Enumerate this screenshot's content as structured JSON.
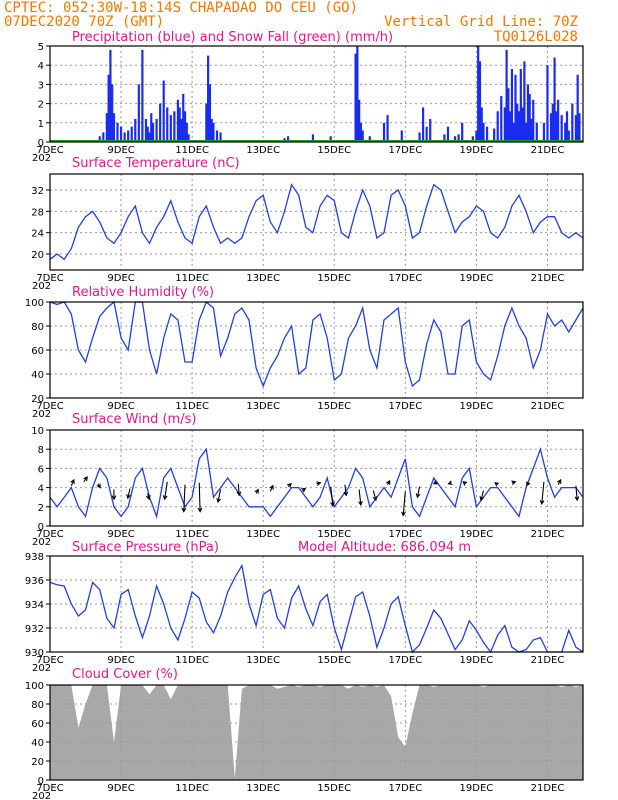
{
  "header": {
    "line1": "CPTEC:   052:30W-18:14S  CHAPADAO DO CEU (GO)",
    "line2_left": "07DEC2020 70Z (GMT)",
    "line2_right": "Vertical Grid Line: 70Z",
    "line3_right": "TQ0126L028"
  },
  "colors": {
    "header": "#f07800",
    "title": "#e0188c",
    "precip": "#1a2cf0",
    "snow": "#1aa020",
    "line": "#2240e0",
    "arrows": "#000000",
    "cloud": "#a8a8a8"
  },
  "x_axis": {
    "ticks": [
      "7DEC",
      "9DEC",
      "11DEC",
      "13DEC",
      "15DEC",
      "17DEC",
      "19DEC",
      "21DEC"
    ],
    "partial_label": "202"
  },
  "chart_data": [
    {
      "id": "precip",
      "type": "bar",
      "title": "Precipitation (blue) and Snow Fall (green) (mm/h)",
      "ylim": [
        0,
        5
      ],
      "yticks": [
        0,
        1,
        2,
        3,
        4,
        5
      ],
      "xlim": [
        7,
        22
      ],
      "series": [
        {
          "name": "Precipitation",
          "x": [
            8.4,
            8.5,
            8.6,
            8.65,
            8.7,
            8.75,
            8.8,
            8.9,
            9.0,
            9.1,
            9.2,
            9.3,
            9.4,
            9.5,
            9.6,
            9.7,
            9.75,
            9.8,
            9.85,
            9.9,
            10.0,
            10.1,
            10.2,
            10.3,
            10.4,
            10.5,
            10.6,
            10.65,
            10.7,
            10.75,
            10.8,
            10.85,
            10.9,
            11.4,
            11.45,
            11.5,
            11.55,
            11.6,
            11.7,
            11.8,
            13.6,
            13.7,
            14.4,
            14.9,
            15.6,
            15.65,
            15.7,
            15.75,
            15.8,
            16.0,
            16.4,
            16.5,
            16.9,
            17.4,
            17.5,
            17.6,
            17.7,
            18.1,
            18.2,
            18.4,
            18.5,
            18.6,
            18.9,
            19.0,
            19.05,
            19.1,
            19.15,
            19.2,
            19.3,
            19.5,
            19.6,
            19.7,
            19.8,
            19.85,
            19.9,
            19.95,
            20.0,
            20.05,
            20.1,
            20.15,
            20.2,
            20.25,
            20.3,
            20.35,
            20.4,
            20.45,
            20.5,
            20.55,
            20.6,
            20.7,
            20.9,
            21.0,
            21.1,
            21.15,
            21.2,
            21.25,
            21.3,
            21.4,
            21.5,
            21.55,
            21.6,
            21.7,
            21.8,
            21.85,
            21.9
          ],
          "values": [
            0.3,
            0.5,
            1.5,
            3.5,
            4.8,
            3.0,
            1.5,
            1.0,
            0.8,
            0.5,
            0.6,
            0.8,
            1.2,
            3.0,
            4.8,
            1.2,
            0.8,
            0.5,
            1.5,
            1.0,
            1.2,
            2.0,
            3.2,
            1.8,
            1.4,
            1.6,
            2.2,
            1.8,
            1.2,
            2.5,
            1.6,
            1.0,
            0.4,
            2.0,
            4.5,
            3.0,
            1.2,
            1.0,
            0.6,
            0.5,
            0.2,
            0.3,
            0.4,
            0.3,
            4.6,
            5.0,
            2.2,
            1.0,
            0.6,
            0.3,
            1.0,
            1.4,
            0.6,
            0.5,
            1.8,
            0.8,
            1.2,
            0.4,
            0.8,
            0.3,
            0.4,
            1.0,
            0.3,
            0.6,
            5.0,
            4.2,
            1.8,
            1.0,
            0.8,
            0.7,
            1.6,
            2.4,
            1.8,
            4.8,
            2.8,
            1.6,
            3.8,
            1.0,
            3.5,
            2.0,
            1.6,
            3.8,
            1.8,
            4.2,
            1.0,
            3.0,
            2.5,
            1.2,
            2.2,
            1.0,
            1.0,
            4.0,
            1.5,
            2.0,
            4.4,
            1.6,
            2.2,
            1.4,
            1.0,
            1.6,
            0.6,
            2.0,
            1.4,
            3.5,
            1.5
          ]
        },
        {
          "name": "Snow Fall",
          "x": [
            7.0,
            22.0
          ],
          "values": [
            0,
            0
          ]
        }
      ]
    },
    {
      "id": "temp",
      "type": "line",
      "title": "Surface Temperature (nC)",
      "ylim": [
        17,
        35
      ],
      "yticks": [
        20,
        24,
        28,
        32
      ],
      "xlim": [
        7,
        22
      ],
      "x": [
        7.0,
        7.2,
        7.4,
        7.6,
        7.8,
        8.0,
        8.2,
        8.4,
        8.6,
        8.8,
        9.0,
        9.2,
        9.4,
        9.6,
        9.8,
        10.0,
        10.2,
        10.4,
        10.6,
        10.8,
        11.0,
        11.2,
        11.4,
        11.6,
        11.8,
        12.0,
        12.2,
        12.4,
        12.6,
        12.8,
        13.0,
        13.2,
        13.4,
        13.6,
        13.8,
        14.0,
        14.2,
        14.4,
        14.6,
        14.8,
        15.0,
        15.2,
        15.4,
        15.6,
        15.8,
        16.0,
        16.2,
        16.4,
        16.6,
        16.8,
        17.0,
        17.2,
        17.4,
        17.6,
        17.8,
        18.0,
        18.2,
        18.4,
        18.6,
        18.8,
        19.0,
        19.2,
        19.4,
        19.6,
        19.8,
        20.0,
        20.2,
        20.4,
        20.6,
        20.8,
        21.0,
        21.2,
        21.4,
        21.6,
        21.8,
        22.0
      ],
      "values": [
        19,
        20,
        19,
        21,
        25,
        27,
        28,
        26,
        23,
        22,
        24,
        27,
        29,
        24,
        22,
        25,
        27,
        30,
        26,
        23,
        22,
        27,
        29,
        25,
        22,
        23,
        22,
        23,
        27,
        30,
        31,
        26,
        24,
        28,
        33,
        31,
        25,
        24,
        29,
        31,
        30,
        24,
        23,
        28,
        32,
        29,
        23,
        24,
        31,
        32,
        29,
        23,
        24,
        29,
        33,
        32,
        28,
        24,
        26,
        27,
        29,
        28,
        24,
        23,
        25,
        29,
        31,
        28,
        24,
        26,
        27,
        27,
        24,
        23,
        24,
        23
      ]
    },
    {
      "id": "rh",
      "type": "line",
      "title": "Relative Humidity (%)",
      "ylim": [
        20,
        100
      ],
      "yticks": [
        20,
        40,
        60,
        80,
        100
      ],
      "xlim": [
        7,
        22
      ],
      "x": [
        7.0,
        7.2,
        7.4,
        7.6,
        7.8,
        8.0,
        8.2,
        8.4,
        8.6,
        8.8,
        9.0,
        9.2,
        9.4,
        9.6,
        9.8,
        10.0,
        10.2,
        10.4,
        10.6,
        10.8,
        11.0,
        11.2,
        11.4,
        11.6,
        11.8,
        12.0,
        12.2,
        12.4,
        12.6,
        12.8,
        13.0,
        13.2,
        13.4,
        13.6,
        13.8,
        14.0,
        14.2,
        14.4,
        14.6,
        14.8,
        15.0,
        15.2,
        15.4,
        15.6,
        15.8,
        16.0,
        16.2,
        16.4,
        16.6,
        16.8,
        17.0,
        17.2,
        17.4,
        17.6,
        17.8,
        18.0,
        18.2,
        18.4,
        18.6,
        18.8,
        19.0,
        19.2,
        19.4,
        19.6,
        19.8,
        20.0,
        20.2,
        20.4,
        20.6,
        20.8,
        21.0,
        21.2,
        21.4,
        21.6,
        21.8,
        22.0
      ],
      "values": [
        100,
        98,
        100,
        90,
        60,
        50,
        70,
        88,
        95,
        100,
        70,
        60,
        100,
        100,
        60,
        40,
        70,
        90,
        85,
        50,
        50,
        85,
        100,
        95,
        55,
        70,
        90,
        95,
        85,
        45,
        30,
        45,
        55,
        70,
        80,
        40,
        45,
        85,
        90,
        70,
        35,
        40,
        70,
        80,
        95,
        60,
        45,
        85,
        90,
        95,
        50,
        30,
        35,
        65,
        85,
        75,
        40,
        40,
        80,
        85,
        50,
        40,
        35,
        55,
        80,
        95,
        80,
        70,
        45,
        60,
        90,
        80,
        85,
        75,
        85,
        95
      ]
    },
    {
      "id": "wind",
      "type": "line",
      "title": "Surface Wind (m/s)",
      "ylim": [
        0,
        10
      ],
      "yticks": [
        0,
        2,
        4,
        6,
        8,
        10
      ],
      "xlim": [
        7,
        22
      ],
      "x": [
        7.0,
        7.2,
        7.4,
        7.6,
        7.8,
        8.0,
        8.2,
        8.4,
        8.6,
        8.8,
        9.0,
        9.2,
        9.4,
        9.6,
        9.8,
        10.0,
        10.2,
        10.4,
        10.6,
        10.8,
        11.0,
        11.2,
        11.4,
        11.6,
        11.8,
        12.0,
        12.2,
        12.4,
        12.6,
        12.8,
        13.0,
        13.2,
        13.4,
        13.6,
        13.8,
        14.0,
        14.2,
        14.4,
        14.6,
        14.8,
        15.0,
        15.2,
        15.4,
        15.6,
        15.8,
        16.0,
        16.2,
        16.4,
        16.6,
        16.8,
        17.0,
        17.2,
        17.4,
        17.6,
        17.8,
        18.0,
        18.2,
        18.4,
        18.6,
        18.8,
        19.0,
        19.2,
        19.4,
        19.6,
        19.8,
        20.0,
        20.2,
        20.4,
        20.6,
        20.8,
        21.0,
        21.2,
        21.4,
        21.6,
        21.8,
        22.0
      ],
      "values": [
        3,
        2,
        3,
        4,
        2,
        1,
        4,
        6,
        5,
        2,
        1,
        2,
        5,
        6,
        3,
        1,
        5,
        6,
        4,
        2,
        3,
        7,
        8,
        3,
        4,
        5,
        4,
        3,
        2,
        2,
        2,
        1,
        2,
        3,
        4,
        4,
        3,
        2,
        3,
        5,
        2,
        3,
        4,
        6,
        5,
        2,
        3,
        4,
        3,
        5,
        7,
        2,
        1,
        3,
        5,
        4,
        3,
        2,
        5,
        6,
        2,
        3,
        4,
        4,
        3,
        2,
        1,
        4,
        6,
        8,
        5,
        3,
        4,
        4,
        4,
        3
      ],
      "arrows": {
        "x": [
          7.6,
          7.95,
          8.35,
          8.8,
          9.25,
          9.75,
          10.3,
          10.8,
          11.2,
          11.8,
          12.3,
          12.8,
          13.2,
          13.7,
          14.1,
          14.5,
          14.9,
          15.3,
          15.7,
          16.1,
          16.5,
          17.0,
          17.4,
          17.8,
          18.3,
          18.7,
          19.2,
          19.6,
          20.0,
          20.4,
          20.9,
          21.3,
          21.8
        ],
        "y": [
          4.2,
          4.6,
          4.4,
          3.8,
          3.9,
          3.4,
          4.6,
          4.3,
          4.5,
          3.8,
          4.4,
          3.4,
          3.6,
          4.1,
          3.7,
          4.4,
          4.1,
          4.3,
          3.8,
          3.7,
          4.3,
          3.6,
          4.1,
          4.6,
          4.5,
          4.4,
          3.7,
          4.3,
          4.5,
          4.4,
          4.6,
          4.3,
          4.2
        ],
        "u": [
          0.6,
          0.8,
          0.5,
          0,
          -0.5,
          0.3,
          -0.6,
          -0.3,
          0.2,
          -0.6,
          0.2,
          0.5,
          0.6,
          0.7,
          0.7,
          0.9,
          0.5,
          0.3,
          0.4,
          0.6,
          0.5,
          -0.5,
          -0.5,
          0.8,
          -0.7,
          -0.6,
          -0.6,
          -0.6,
          0.8,
          0.8,
          -0.5,
          0.6,
          0.3
        ],
        "v": [
          0.6,
          0.5,
          -0.4,
          -1.0,
          -1.0,
          -0.6,
          -1.8,
          -2.8,
          -3.0,
          -1.3,
          -1.2,
          0.4,
          0.6,
          0.3,
          0.2,
          0.1,
          -2.0,
          -1.1,
          -1.6,
          -1.0,
          0.4,
          -2.5,
          -1.1,
          -0.2,
          -0.1,
          0.2,
          -1.0,
          0.2,
          0.1,
          0,
          -2.3,
          0.5,
          -1.5
        ]
      }
    },
    {
      "id": "pressure",
      "type": "line",
      "title": "Surface Pressure (hPa)",
      "annotation": "Model Altitude: 686.094 m",
      "ylim": [
        930,
        938
      ],
      "yticks": [
        930,
        932,
        934,
        936,
        938
      ],
      "xlim": [
        7,
        22
      ],
      "x": [
        7.0,
        7.2,
        7.4,
        7.6,
        7.8,
        8.0,
        8.2,
        8.4,
        8.6,
        8.8,
        9.0,
        9.2,
        9.4,
        9.6,
        9.8,
        10.0,
        10.2,
        10.4,
        10.6,
        10.8,
        11.0,
        11.2,
        11.4,
        11.6,
        11.8,
        12.0,
        12.2,
        12.4,
        12.6,
        12.8,
        13.0,
        13.2,
        13.4,
        13.6,
        13.8,
        14.0,
        14.2,
        14.4,
        14.6,
        14.8,
        15.0,
        15.2,
        15.4,
        15.6,
        15.8,
        16.0,
        16.2,
        16.4,
        16.6,
        16.8,
        17.0,
        17.2,
        17.4,
        17.6,
        17.8,
        18.0,
        18.2,
        18.4,
        18.6,
        18.8,
        19.0,
        19.2,
        19.4,
        19.6,
        19.8,
        20.0,
        20.2,
        20.4,
        20.6,
        20.8,
        21.0,
        21.2,
        21.4,
        21.6,
        21.8,
        22.0
      ],
      "values": [
        935.8,
        935.6,
        935.5,
        934.0,
        933.0,
        933.5,
        935.8,
        935.2,
        932.8,
        932.0,
        934.8,
        935.2,
        933.0,
        931.2,
        933.0,
        935.5,
        934.0,
        932.0,
        931.0,
        932.8,
        935.0,
        934.5,
        932.5,
        931.6,
        933.0,
        935.0,
        936.2,
        937.2,
        934.0,
        932.2,
        934.8,
        935.2,
        932.8,
        932.0,
        934.5,
        935.5,
        933.6,
        932.2,
        934.2,
        934.8,
        932.0,
        930.2,
        932.4,
        934.6,
        935.0,
        933.0,
        930.4,
        932.0,
        934.0,
        934.6,
        932.2,
        930.0,
        930.6,
        932.0,
        933.5,
        932.8,
        931.5,
        930.2,
        931.0,
        932.6,
        931.8,
        930.8,
        929.8,
        931.4,
        932.2,
        930.4,
        929.5,
        930.2,
        931.0,
        931.2,
        930.0,
        929.4,
        930.0,
        931.8,
        930.4,
        929.6
      ]
    },
    {
      "id": "cloud",
      "type": "area",
      "title": "Cloud Cover (%)",
      "ylim": [
        0,
        100
      ],
      "yticks": [
        0,
        20,
        40,
        60,
        80,
        100
      ],
      "xlim": [
        7,
        22
      ],
      "x": [
        7.0,
        7.2,
        7.4,
        7.6,
        7.8,
        8.0,
        8.2,
        8.4,
        8.6,
        8.8,
        9.0,
        9.2,
        9.4,
        9.6,
        9.8,
        10.0,
        10.2,
        10.4,
        10.6,
        10.8,
        11.0,
        11.2,
        11.4,
        11.6,
        11.8,
        12.0,
        12.2,
        12.4,
        12.6,
        12.8,
        13.0,
        13.2,
        13.4,
        13.6,
        13.8,
        14.0,
        14.2,
        14.4,
        14.6,
        14.8,
        15.0,
        15.2,
        15.4,
        15.6,
        15.8,
        16.0,
        16.2,
        16.4,
        16.6,
        16.8,
        17.0,
        17.2,
        17.4,
        17.6,
        17.8,
        18.0,
        18.2,
        18.4,
        18.6,
        18.8,
        19.0,
        19.2,
        19.4,
        19.6,
        19.8,
        20.0,
        20.2,
        20.4,
        20.6,
        20.8,
        21.0,
        21.2,
        21.4,
        21.6,
        21.8,
        22.0
      ],
      "values": [
        100,
        100,
        100,
        100,
        55,
        80,
        100,
        100,
        100,
        40,
        100,
        100,
        100,
        100,
        90,
        100,
        100,
        85,
        100,
        100,
        100,
        100,
        100,
        100,
        100,
        100,
        2,
        96,
        100,
        100,
        100,
        100,
        96,
        98,
        100,
        98,
        100,
        100,
        98,
        100,
        100,
        100,
        96,
        100,
        98,
        100,
        98,
        100,
        88,
        45,
        35,
        70,
        100,
        100,
        98,
        100,
        100,
        100,
        100,
        100,
        100,
        98,
        100,
        100,
        100,
        100,
        100,
        100,
        100,
        100,
        100,
        100,
        98,
        100,
        98,
        100
      ]
    }
  ]
}
